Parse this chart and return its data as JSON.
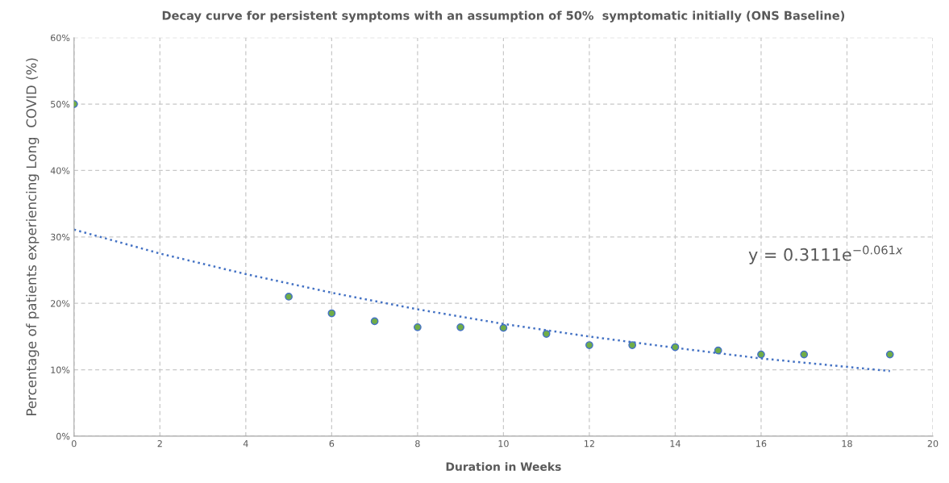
{
  "chart_data": {
    "type": "scatter",
    "title": "Decay curve for persistent symptoms with an assumption of 50%  symptomatic initially (ONS Baseline)",
    "xlabel": "Duration in Weeks",
    "ylabel": "Percentage of patients experiencing Long  COVID (%)",
    "series": [
      {
        "color": "#70ad47",
        "marker": "circle",
        "x": [
          0,
          5,
          6,
          7,
          8,
          9,
          10,
          11,
          12,
          13,
          14,
          15,
          16,
          17,
          19
        ],
        "values": [
          50,
          21.0,
          18.5,
          17.3,
          16.4,
          16.4,
          16.3,
          15.4,
          13.7,
          13.7,
          13.4,
          12.9,
          12.3,
          12.3,
          12.3
        ]
      },
      {
        "type": "line",
        "color": "#4472c4",
        "line_style": "dotted",
        "x": [
          0,
          2,
          4,
          6,
          8,
          10,
          12,
          14,
          16,
          19
        ],
        "values": [
          31.1,
          27.5,
          24.4,
          21.6,
          19.1,
          16.9,
          15.0,
          13.3,
          11.7,
          9.8
        ]
      }
    ],
    "annotations": [
      "y = 0.3111e$^{−0.061x}$"
    ],
    "xlim": [
      0,
      20
    ],
    "xticks": [
      0,
      2,
      4,
      6,
      8,
      10,
      12,
      14,
      16,
      18,
      20
    ],
    "ylim": [
      0,
      60
    ],
    "yticks": [
      {
        "value": 0,
        "label": "0%"
      },
      {
        "value": 10,
        "label": "10%"
      },
      {
        "value": 20,
        "label": "20%"
      },
      {
        "value": 30,
        "label": "30%"
      },
      {
        "value": 40,
        "label": "40%"
      },
      {
        "value": 50,
        "label": "50%"
      },
      {
        "value": 60,
        "label": "60%"
      }
    ],
    "grid": true,
    "legend": false
  }
}
